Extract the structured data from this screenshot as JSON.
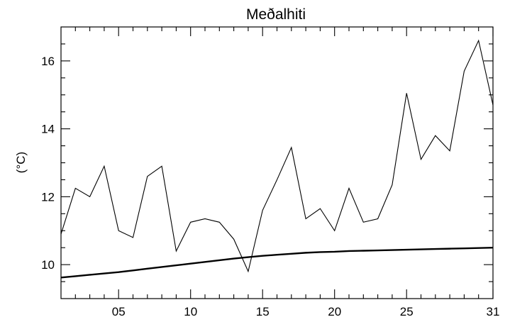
{
  "chart_data": {
    "type": "line",
    "title": "Meðalhiti",
    "xlabel": "",
    "ylabel": "(°C)",
    "xlim": [
      1,
      31
    ],
    "ylim": [
      9.0,
      17.0
    ],
    "x_ticks": [
      {
        "value": 5,
        "label": "05"
      },
      {
        "value": 10,
        "label": "10"
      },
      {
        "value": 15,
        "label": "15"
      },
      {
        "value": 20,
        "label": "20"
      },
      {
        "value": 25,
        "label": "25"
      },
      {
        "value": 31,
        "label": "31"
      }
    ],
    "x_minor_ticks": [
      2,
      3,
      4,
      6,
      7,
      8,
      9,
      11,
      12,
      13,
      14,
      16,
      17,
      18,
      19,
      21,
      22,
      23,
      24,
      26,
      27,
      28,
      29,
      30
    ],
    "y_ticks": [
      {
        "value": 10,
        "label": "10"
      },
      {
        "value": 12,
        "label": "12"
      },
      {
        "value": 14,
        "label": "14"
      },
      {
        "value": 16,
        "label": "16"
      }
    ],
    "y_minor_ticks": [
      9.5,
      10.5,
      11,
      11.5,
      12.5,
      13,
      13.5,
      14.5,
      15,
      15.5,
      16.5
    ],
    "grid": false,
    "colors": {
      "line": "#000000",
      "axes": "#000000",
      "background": "#ffffff"
    },
    "series": [
      {
        "style": "thin",
        "x": [
          1,
          2,
          3,
          4,
          5,
          6,
          7,
          8,
          9,
          10,
          11,
          12,
          13,
          14,
          15,
          16,
          17,
          18,
          19,
          20,
          21,
          22,
          23,
          24,
          25,
          26,
          27,
          28,
          29,
          30,
          31
        ],
        "values": [
          10.9,
          12.25,
          12.0,
          12.9,
          11.0,
          10.8,
          12.6,
          12.9,
          10.4,
          11.25,
          11.35,
          11.25,
          10.75,
          9.8,
          11.6,
          12.5,
          13.45,
          11.35,
          11.65,
          11.0,
          12.25,
          11.25,
          11.35,
          12.35,
          15.05,
          13.1,
          13.8,
          13.35,
          15.7,
          16.6,
          14.7
        ]
      },
      {
        "style": "thick",
        "x": [
          1,
          2,
          3,
          4,
          5,
          6,
          7,
          8,
          9,
          10,
          11,
          12,
          13,
          14,
          15,
          16,
          17,
          18,
          19,
          20,
          21,
          22,
          23,
          24,
          25,
          26,
          27,
          28,
          29,
          30,
          31
        ],
        "values": [
          9.62,
          9.66,
          9.7,
          9.74,
          9.78,
          9.83,
          9.88,
          9.93,
          9.98,
          10.03,
          10.08,
          10.13,
          10.18,
          10.22,
          10.26,
          10.29,
          10.32,
          10.35,
          10.37,
          10.38,
          10.4,
          10.41,
          10.42,
          10.43,
          10.44,
          10.45,
          10.46,
          10.47,
          10.48,
          10.49,
          10.5
        ]
      }
    ]
  }
}
